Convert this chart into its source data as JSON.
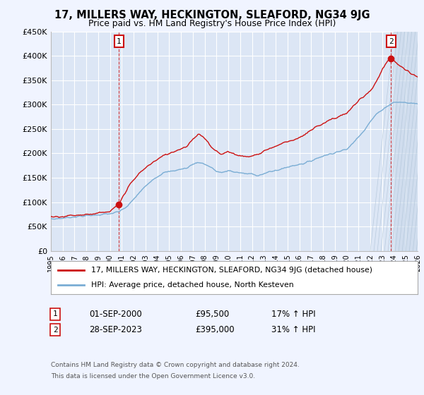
{
  "title": "17, MILLERS WAY, HECKINGTON, SLEAFORD, NG34 9JG",
  "subtitle": "Price paid vs. HM Land Registry's House Price Index (HPI)",
  "fig_bg": "#f0f4ff",
  "plot_bg": "#dce6f5",
  "grid_color": "#ffffff",
  "hpi_color": "#7aadd4",
  "price_color": "#cc1111",
  "xmin": 1995,
  "xmax": 2026,
  "ymin": 0,
  "ymax": 450000,
  "yticks": [
    0,
    50000,
    100000,
    150000,
    200000,
    250000,
    300000,
    350000,
    400000,
    450000
  ],
  "ytick_labels": [
    "£0",
    "£50K",
    "£100K",
    "£150K",
    "£200K",
    "£250K",
    "£300K",
    "£350K",
    "£400K",
    "£450K"
  ],
  "xtick_years": [
    1995,
    1996,
    1997,
    1998,
    1999,
    2000,
    2001,
    2002,
    2003,
    2004,
    2005,
    2006,
    2007,
    2008,
    2009,
    2010,
    2011,
    2012,
    2013,
    2014,
    2015,
    2016,
    2017,
    2018,
    2019,
    2020,
    2021,
    2022,
    2023,
    2024,
    2025,
    2026
  ],
  "sale1_x": 2000.75,
  "sale1_y": 95500,
  "sale1_label": "1",
  "sale1_date": "01-SEP-2000",
  "sale1_price": "£95,500",
  "sale1_hpi": "17% ↑ HPI",
  "sale2_x": 2023.75,
  "sale2_y": 395000,
  "sale2_label": "2",
  "sale2_date": "28-SEP-2023",
  "sale2_price": "£395,000",
  "sale2_hpi": "31% ↑ HPI",
  "legend_label1": "17, MILLERS WAY, HECKINGTON, SLEAFORD, NG34 9JG (detached house)",
  "legend_label2": "HPI: Average price, detached house, North Kesteven",
  "footnote1": "Contains HM Land Registry data © Crown copyright and database right 2024.",
  "footnote2": "This data is licensed under the Open Government Licence v3.0.",
  "hatch_start": 2024.0
}
